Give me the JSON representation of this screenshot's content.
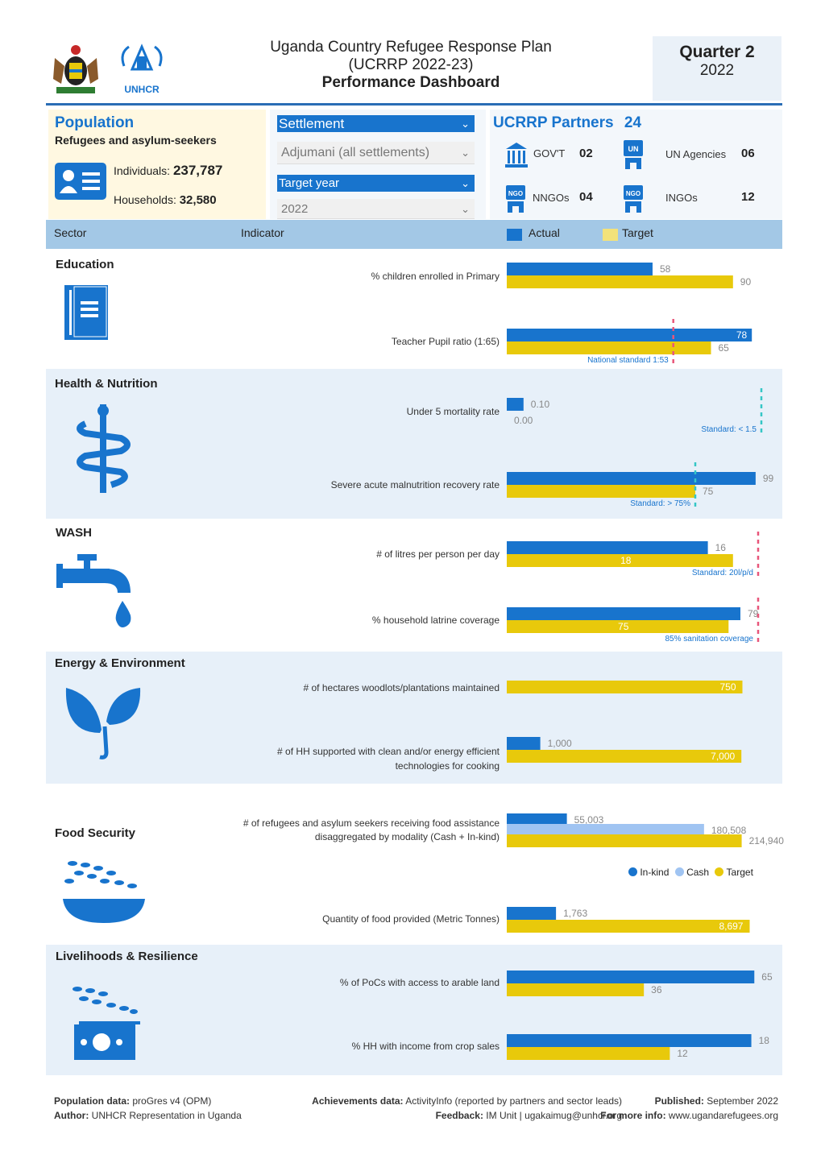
{
  "header": {
    "title_line1": "Uganda Country Refugee Response Plan",
    "title_line2": "(UCRRP 2022-23)",
    "title_line3": "Performance Dashboard",
    "quarter": "Quarter 2",
    "year": "2022",
    "unhcr_logo_text": "UNHCR"
  },
  "population": {
    "title": "Population",
    "subtitle": "Refugees and asylum-seekers",
    "individuals_label": "Individuals:",
    "individuals_value": "237,787",
    "households_label": "Households:",
    "households_value": "32,580"
  },
  "filters": {
    "settlement_label": "Settlement",
    "settlement_value": "Adjumani (all settlements)",
    "target_year_label": "Target year",
    "target_year_value": "2022"
  },
  "partners": {
    "title": "UCRRP Partners",
    "total": "24",
    "items": [
      {
        "label": "GOV'T",
        "value": "02",
        "icon": "government-building-icon"
      },
      {
        "label": "UN Agencies",
        "value": "06",
        "icon": "un-person-icon"
      },
      {
        "label": "NNGOs",
        "value": "04",
        "icon": "ngo-person-icon"
      },
      {
        "label": "INGOs",
        "value": "12",
        "icon": "ngo-person-icon"
      }
    ]
  },
  "columns": {
    "sector": "Sector",
    "indicator": "Indicator",
    "actual": "Actual",
    "target": "Target"
  },
  "colors": {
    "actual": "#1874cd",
    "target": "#e8c90b",
    "cash": "#a0c4f2",
    "band": "#e7f0f9",
    "standard_red": "#e8567a",
    "standard_teal": "#35c6c6"
  },
  "sectors": [
    {
      "name": "Education",
      "icon": "notebook-icon"
    },
    {
      "name": "Health & Nutrition",
      "icon": "medical-snake-icon"
    },
    {
      "name": "WASH",
      "icon": "water-tap-icon"
    },
    {
      "name": "Energy & Environment",
      "icon": "sprout-icon"
    },
    {
      "name": "Food Security",
      "icon": "grain-bowl-icon"
    },
    {
      "name": "Livelihoods & Resilience",
      "icon": "grain-money-icon"
    }
  ],
  "chart_data": {
    "type": "bar",
    "orientation": "horizontal",
    "indicators": [
      {
        "label": "% children enrolled in Primary",
        "actual": 58,
        "target": 90,
        "max": 100
      },
      {
        "label": "Teacher Pupil ratio (1:65)",
        "actual": 78,
        "target": 65,
        "max": 80,
        "standard": 53,
        "standard_label": "National standard 1:53"
      },
      {
        "label": "Under 5 mortality rate",
        "actual": 0.1,
        "target": 0.0,
        "actual_label": "0.10",
        "target_label": "0.00",
        "max": 1.5,
        "standard": 1.5,
        "standard_label": "Standard: < 1.5"
      },
      {
        "label": "Severe acute malnutrition recovery rate",
        "actual": 99,
        "target": 75,
        "max": 100,
        "standard": 75,
        "standard_label": "Standard: > 75%"
      },
      {
        "label": "# of litres per person per day",
        "actual": 16,
        "target": 18,
        "max": 20,
        "standard": 20,
        "standard_label": "Standard: 20l/p/d"
      },
      {
        "label": "% household latrine coverage",
        "actual": 79,
        "target": 75,
        "max": 85,
        "standard": 85,
        "standard_label": "85% sanitation coverage"
      },
      {
        "label": "# of hectares woodlots/plantations maintained",
        "target": 750,
        "target_label": "750",
        "max": 800
      },
      {
        "label_line1": "# of HH supported with clean and/or energy efficient",
        "label_line2": "technologies for cooking",
        "actual": 1000,
        "target": 7000,
        "actual_label": "1,000",
        "target_label": "7,000",
        "max": 7500
      },
      {
        "label_line1": "# of refugees and asylum seekers receiving food assistance",
        "label_line2": "disaggregated by modality (Cash + In-kind)",
        "in_kind": 55003,
        "cash": 180508,
        "target": 214940,
        "in_kind_label": "55,003",
        "cash_label": "180,508",
        "target_label": "214,940",
        "max": 230000
      },
      {
        "label": "Quantity of food provided (Metric Tonnes)",
        "actual": 1763,
        "target": 8697,
        "actual_label": "1,763",
        "target_label": "8,697",
        "max": 9000
      },
      {
        "label": "% of PoCs with access to arable land",
        "actual": 65,
        "target": 36,
        "max": 66
      },
      {
        "label": "% HH with income from crop sales",
        "actual": 18,
        "target": 12,
        "max": 18.5
      }
    ],
    "food_legend": [
      "In-kind",
      "Cash",
      "Target"
    ]
  },
  "footer": {
    "pop_label": "Population data:",
    "pop_value": "proGres v4 (OPM)",
    "author_label": "Author:",
    "author_value": "UNHCR Representation in Uganda",
    "ach_label": "Achievements data:",
    "ach_value": "ActivityInfo (reported by partners and sector leads)",
    "fb_label": "Feedback:",
    "fb_value": "IM Unit | ugakaimug@unhcr.org",
    "pub_label": "Published:",
    "pub_value": "September 2022",
    "info_label": "For more info:",
    "info_value": "www.ugandarefugees.org"
  }
}
